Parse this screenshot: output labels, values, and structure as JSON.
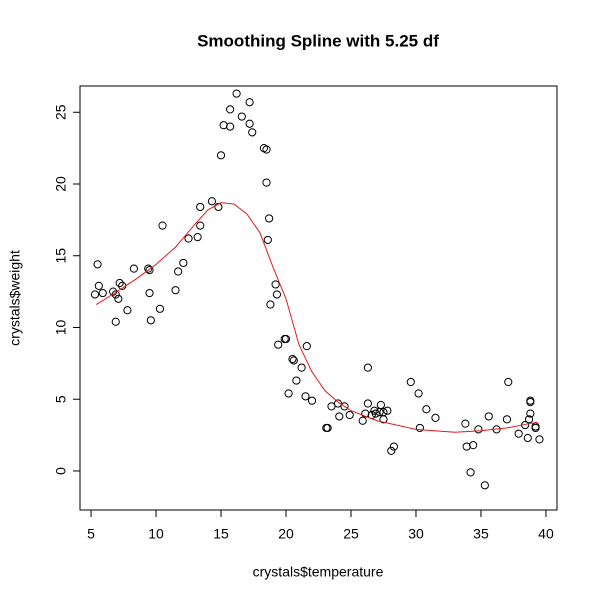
{
  "chart_data": {
    "type": "scatter",
    "title": "Smoothing Spline with 5.25 df",
    "x_label": "crystals$temperature",
    "y_label": "crystals$weight",
    "xlim": [
      4.15,
      40.85
    ],
    "ylim": [
      -2.72,
      26.83
    ],
    "xticks": [
      5,
      10,
      15,
      20,
      25,
      30,
      35,
      40
    ],
    "yticks": [
      0,
      5,
      10,
      15,
      20,
      25
    ],
    "x": [
      5.3,
      5.5,
      5.6,
      5.9,
      6.7,
      6.9,
      6.9,
      7.1,
      7.2,
      7.4,
      7.8,
      8.3,
      9.4,
      9.5,
      9.5,
      9.6,
      10.3,
      10.5,
      11.5,
      11.7,
      12.1,
      12.5,
      13.2,
      13.4,
      13.4,
      14.3,
      14.8,
      15.0,
      15.2,
      15.7,
      15.7,
      16.2,
      16.6,
      17.2,
      17.2,
      17.4,
      18.3,
      18.5,
      18.5,
      18.7,
      18.6,
      18.8,
      19.2,
      19.3,
      19.4,
      19.9,
      20.0,
      20.2,
      20.5,
      20.6,
      20.8,
      21.2,
      21.6,
      21.5,
      22.0,
      23.1,
      23.2,
      23.5,
      24.0,
      24.1,
      24.5,
      24.9,
      25.9,
      26.1,
      26.3,
      26.3,
      26.6,
      26.8,
      26.9,
      27.2,
      27.3,
      27.5,
      27.5,
      27.8,
      28.1,
      28.3,
      29.6,
      30.2,
      30.3,
      30.8,
      31.5,
      33.8,
      33.9,
      34.2,
      34.4,
      34.8,
      35.3,
      35.6,
      36.2,
      37.0,
      37.1,
      37.9,
      38.4,
      38.6,
      38.8,
      38.8,
      38.7,
      38.8,
      39.2,
      39.2,
      39.5
    ],
    "values": [
      12.3,
      14.4,
      12.9,
      12.4,
      12.5,
      10.4,
      12.3,
      12.0,
      13.1,
      12.9,
      11.2,
      14.1,
      14.1,
      14.0,
      12.4,
      10.5,
      11.3,
      17.1,
      12.6,
      13.9,
      14.5,
      16.2,
      16.3,
      17.1,
      18.4,
      18.8,
      18.4,
      22.0,
      24.1,
      24.0,
      25.2,
      26.3,
      24.7,
      24.2,
      25.7,
      23.6,
      22.5,
      22.4,
      20.1,
      17.6,
      16.1,
      11.6,
      13.0,
      12.3,
      8.8,
      9.2,
      9.2,
      5.4,
      7.8,
      7.7,
      6.3,
      7.2,
      8.7,
      5.2,
      4.9,
      3.0,
      3.0,
      4.5,
      4.7,
      3.8,
      4.5,
      3.9,
      3.5,
      4.0,
      7.2,
      4.7,
      3.9,
      4.2,
      4.0,
      4.1,
      4.6,
      3.6,
      4.1,
      4.2,
      1.4,
      1.7,
      6.2,
      5.4,
      3.0,
      4.3,
      3.7,
      3.3,
      1.7,
      -0.1,
      1.8,
      2.9,
      -1.0,
      3.8,
      2.9,
      3.6,
      6.2,
      2.6,
      3.2,
      2.3,
      4.8,
      4.0,
      3.6,
      4.9,
      3.1,
      3.0,
      2.2
    ],
    "color": "#000000",
    "fit": {
      "color": "#e41a1c",
      "x": [
        5.4,
        7,
        8.5,
        10,
        11.5,
        13,
        14,
        15,
        16,
        17,
        18,
        19,
        20,
        21,
        22,
        23,
        24,
        25,
        27,
        30,
        33,
        35,
        37,
        39.3
      ],
      "values": [
        11.6,
        12.5,
        13.4,
        14.4,
        15.6,
        17.2,
        18.2,
        18.7,
        18.6,
        17.9,
        16.6,
        14.2,
        12.0,
        8.8,
        6.9,
        5.6,
        4.8,
        4.2,
        3.5,
        2.9,
        2.7,
        2.8,
        3.0,
        3.4
      ]
    }
  }
}
